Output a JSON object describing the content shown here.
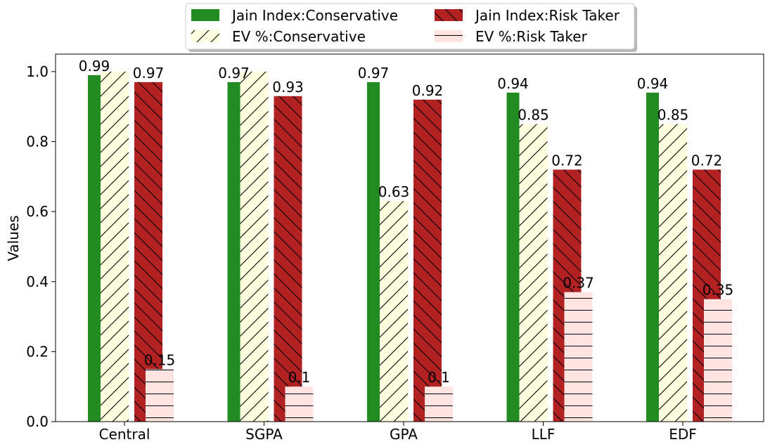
{
  "chart_data": {
    "type": "bar",
    "title": "",
    "xlabel": "",
    "ylabel": "Values",
    "ylim": [
      0,
      1.05
    ],
    "yticks": [
      "0.0",
      "0.2",
      "0.4",
      "0.6",
      "0.8",
      "1.0"
    ],
    "categories": [
      "Central",
      "SGPA",
      "GPA",
      "LLF",
      "EDF"
    ],
    "legend_position": "top-center",
    "grid": false,
    "series": [
      {
        "name": "Jain Index:Conservative",
        "color": "#228b22",
        "pattern": "none",
        "values": [
          0.99,
          0.97,
          0.97,
          0.94,
          0.94
        ],
        "labels": [
          "0.99",
          "0.97",
          "0.97",
          "0.94",
          "0.94"
        ]
      },
      {
        "name": "EV %:Conservative",
        "color": "#ffffe0",
        "pattern": "forward-diagonal",
        "values": [
          1.0,
          1.0,
          0.63,
          0.85,
          0.85
        ],
        "labels": [
          "",
          "",
          "0.63",
          "0.85",
          "0.85"
        ]
      },
      {
        "name": "Jain Index:Risk Taker",
        "color": "#b22222",
        "pattern": "back-diagonal",
        "values": [
          0.97,
          0.93,
          0.92,
          0.72,
          0.72
        ],
        "labels": [
          "0.97",
          "0.93",
          "0.92",
          "0.72",
          "0.72"
        ]
      },
      {
        "name": "EV %:Risk Taker",
        "color": "#ffe4e1",
        "pattern": "horizontal",
        "values": [
          0.15,
          0.1,
          0.1,
          0.37,
          0.35
        ],
        "labels": [
          "0.15",
          "0.1",
          "0.1",
          "0.37",
          "0.35"
        ]
      }
    ]
  }
}
